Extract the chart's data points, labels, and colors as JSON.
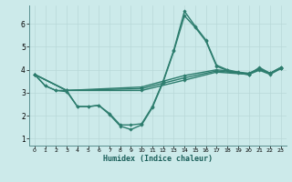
{
  "xlabel": "Humidex (Indice chaleur)",
  "background_color": "#cceaea",
  "line_color": "#2d7d6e",
  "xlim": [
    -0.5,
    23.5
  ],
  "ylim": [
    0.7,
    6.8
  ],
  "yticks": [
    1,
    2,
    3,
    4,
    5,
    6
  ],
  "xticks": [
    0,
    1,
    2,
    3,
    4,
    5,
    6,
    7,
    8,
    9,
    10,
    11,
    12,
    13,
    14,
    15,
    16,
    17,
    18,
    19,
    20,
    21,
    22,
    23
  ],
  "lines": [
    {
      "x": [
        0,
        1,
        2,
        3,
        4,
        5,
        6,
        7,
        8,
        9,
        10,
        11,
        12,
        13,
        14,
        15,
        16,
        17,
        18,
        19,
        20,
        21,
        22,
        23
      ],
      "y": [
        3.8,
        3.3,
        3.1,
        3.1,
        2.4,
        2.4,
        2.45,
        2.1,
        1.6,
        1.6,
        1.65,
        2.4,
        3.5,
        4.85,
        6.55,
        5.9,
        5.3,
        4.2,
        4.0,
        3.9,
        3.8,
        4.1,
        3.85,
        4.1
      ]
    },
    {
      "x": [
        0,
        1,
        2,
        3,
        4,
        5,
        6,
        7,
        8,
        9,
        10,
        11,
        12,
        13,
        14,
        15,
        16,
        17,
        18,
        19,
        20,
        21,
        22,
        23
      ],
      "y": [
        3.8,
        3.3,
        3.1,
        3.05,
        2.4,
        2.4,
        2.45,
        2.05,
        1.55,
        1.4,
        1.6,
        2.35,
        3.45,
        4.8,
        6.35,
        5.85,
        5.25,
        4.15,
        3.97,
        3.87,
        3.78,
        4.05,
        3.83,
        4.08
      ]
    },
    {
      "x": [
        0,
        3,
        10,
        14,
        17,
        20,
        21,
        22,
        23
      ],
      "y": [
        3.8,
        3.1,
        3.25,
        3.75,
        4.0,
        3.85,
        4.05,
        3.85,
        4.1
      ]
    },
    {
      "x": [
        0,
        3,
        10,
        14,
        17,
        20,
        21,
        22,
        23
      ],
      "y": [
        3.8,
        3.1,
        3.18,
        3.65,
        3.95,
        3.82,
        4.02,
        3.83,
        4.08
      ]
    },
    {
      "x": [
        0,
        3,
        10,
        14,
        17,
        20,
        21,
        22,
        23
      ],
      "y": [
        3.8,
        3.1,
        3.1,
        3.55,
        3.9,
        3.8,
        3.98,
        3.8,
        4.05
      ]
    }
  ]
}
